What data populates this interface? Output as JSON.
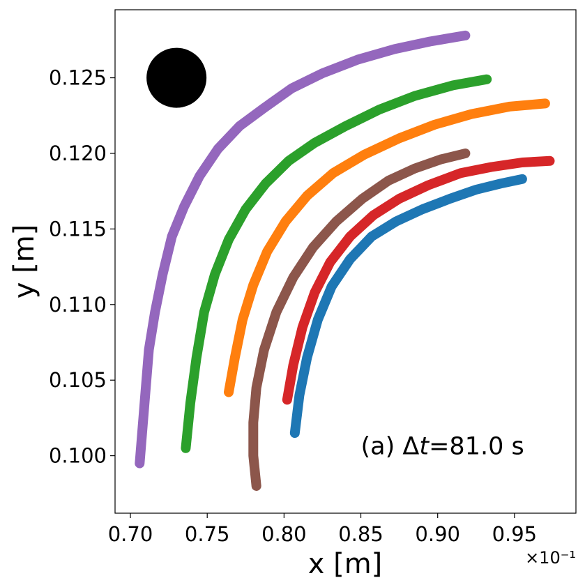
{
  "chart_data": {
    "type": "line",
    "title": "",
    "xlabel": "x [m]",
    "ylabel": "y [m]",
    "x_scale_note": "×10⁻¹",
    "xlim": [
      0.69,
      0.99
    ],
    "ylim": [
      0.0962,
      0.1295
    ],
    "xticks": [
      0.7,
      0.75,
      0.8,
      0.85,
      0.9,
      0.95
    ],
    "xtick_labels": [
      "0.70",
      "0.75",
      "0.80",
      "0.85",
      "0.90",
      "0.95"
    ],
    "yticks": [
      0.1,
      0.105,
      0.11,
      0.115,
      0.12,
      0.125
    ],
    "ytick_labels": [
      "0.100",
      "0.105",
      "0.110",
      "0.115",
      "0.120",
      "0.125"
    ],
    "grid": false,
    "legend": "none",
    "annotation": {
      "text_prefix": "(a)  Δ",
      "text_italic": "t",
      "text_suffix": "=81.0 s",
      "x": 0.85,
      "y": 0.1001
    },
    "marker": {
      "shape": "filled-circle",
      "color": "#000000",
      "x": 0.73,
      "y": 0.125
    },
    "series": [
      {
        "color": "#9467bd",
        "x": [
          0.706,
          0.708,
          0.71,
          0.712,
          0.716,
          0.721,
          0.727,
          0.735,
          0.745,
          0.757,
          0.771,
          0.787,
          0.805,
          0.825,
          0.848,
          0.872,
          0.895,
          0.918
        ],
        "y": [
          0.0995,
          0.102,
          0.1045,
          0.107,
          0.1095,
          0.112,
          0.1145,
          0.1165,
          0.1185,
          0.1203,
          0.1218,
          0.123,
          0.1243,
          0.1253,
          0.1262,
          0.1269,
          0.1274,
          0.1278
        ]
      },
      {
        "color": "#2ca02c",
        "x": [
          0.736,
          0.739,
          0.743,
          0.748,
          0.755,
          0.764,
          0.775,
          0.788,
          0.803,
          0.82,
          0.84,
          0.862,
          0.885,
          0.91,
          0.932
        ],
        "y": [
          0.1005,
          0.1035,
          0.1065,
          0.1095,
          0.112,
          0.1143,
          0.1163,
          0.118,
          0.1195,
          0.1207,
          0.1218,
          0.1229,
          0.1238,
          0.1245,
          0.1249
        ]
      },
      {
        "color": "#ff7f0e",
        "x": [
          0.764,
          0.768,
          0.773,
          0.78,
          0.789,
          0.801,
          0.815,
          0.832,
          0.852,
          0.875,
          0.898,
          0.922,
          0.947,
          0.97
        ],
        "y": [
          0.1042,
          0.1065,
          0.109,
          0.1113,
          0.1135,
          0.1155,
          0.1172,
          0.1187,
          0.1199,
          0.121,
          0.1219,
          0.1226,
          0.1231,
          0.1233
        ]
      },
      {
        "color": "#8c564b",
        "x": [
          0.782,
          0.78,
          0.78,
          0.782,
          0.787,
          0.795,
          0.806,
          0.819,
          0.834,
          0.851,
          0.868,
          0.885,
          0.902,
          0.918
        ],
        "y": [
          0.098,
          0.1,
          0.1022,
          0.1045,
          0.107,
          0.1095,
          0.1118,
          0.1138,
          0.1155,
          0.117,
          0.1182,
          0.119,
          0.1196,
          0.12
        ]
      },
      {
        "color": "#d62728",
        "x": [
          0.802,
          0.806,
          0.812,
          0.82,
          0.83,
          0.843,
          0.858,
          0.875,
          0.894,
          0.915,
          0.935,
          0.955,
          0.973
        ],
        "y": [
          0.1037,
          0.106,
          0.1085,
          0.1108,
          0.1128,
          0.1145,
          0.1159,
          0.117,
          0.1179,
          0.1187,
          0.1191,
          0.1194,
          0.1195
        ]
      },
      {
        "color": "#1f77b4",
        "x": [
          0.807,
          0.81,
          0.815,
          0.822,
          0.831,
          0.843,
          0.857,
          0.873,
          0.89,
          0.908,
          0.925,
          0.941,
          0.955
        ],
        "y": [
          0.1015,
          0.104,
          0.1065,
          0.109,
          0.1112,
          0.113,
          0.1145,
          0.1155,
          0.1163,
          0.117,
          0.1176,
          0.118,
          0.1183
        ]
      }
    ]
  }
}
